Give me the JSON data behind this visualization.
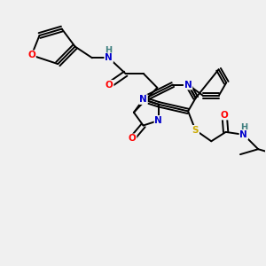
{
  "bg_color": "#f0f0f0",
  "atom_colors": {
    "C": "#000000",
    "N": "#0000cc",
    "O": "#ff0000",
    "S": "#ccaa00",
    "H": "#408080"
  },
  "bond_color": "#000000",
  "bond_width": 1.4,
  "figsize": [
    3.0,
    3.0
  ],
  "dpi": 100
}
